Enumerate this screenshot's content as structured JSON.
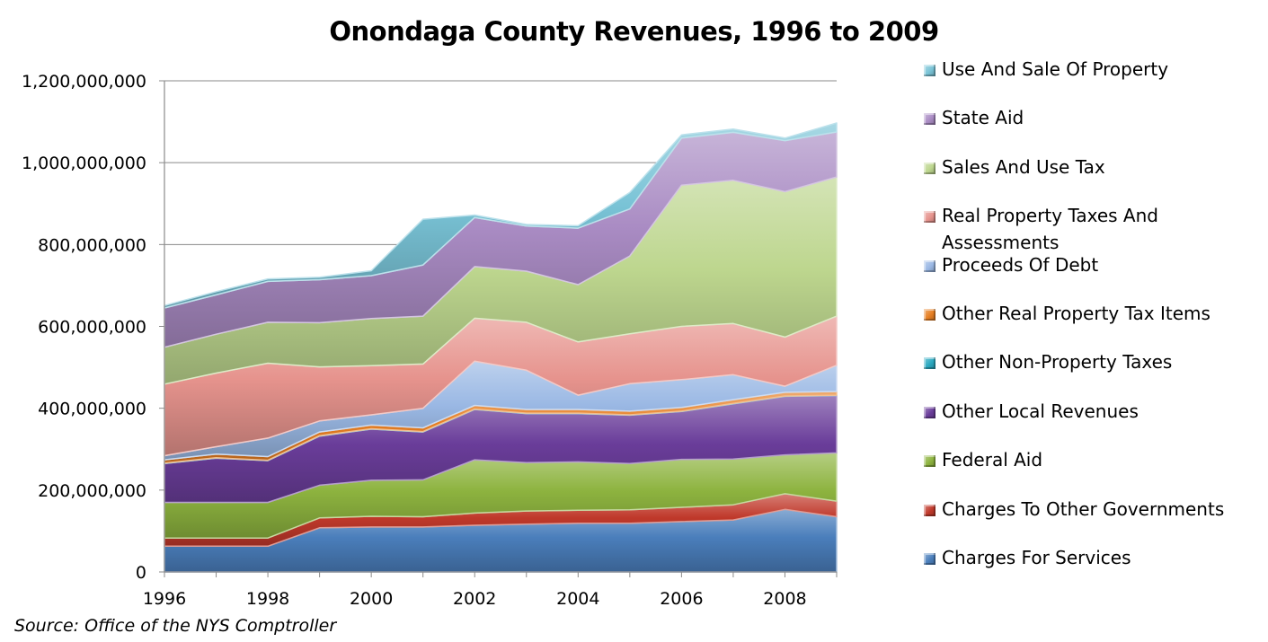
{
  "chart_data": {
    "type": "area",
    "stacked": true,
    "title": "Onondaga County Revenues, 1996 to 2009",
    "source": "Source:  Office of the NYS Comptroller",
    "x": [
      1996,
      1997,
      1998,
      1999,
      2000,
      2001,
      2002,
      2003,
      2004,
      2005,
      2006,
      2007,
      2008,
      2009
    ],
    "x_tick_labels": [
      "1996",
      "1998",
      "2000",
      "2002",
      "2004",
      "2006",
      "2008"
    ],
    "xlim": [
      1996,
      2009
    ],
    "ylim": [
      0,
      1200000000
    ],
    "y_tick_labels": [
      "0",
      "200,000,000",
      "400,000,000",
      "600,000,000",
      "800,000,000",
      "1,000,000,000",
      "1,200,000,000"
    ],
    "y_ticks": [
      0,
      200000000,
      400000000,
      600000000,
      800000000,
      1000000000,
      1200000000
    ],
    "grid": "horizontal",
    "legend_position": "right",
    "series": [
      {
        "name": "Charges For Services",
        "color": "#4a7ebb",
        "values": [
          63000000,
          63000000,
          63000000,
          108000000,
          110000000,
          110000000,
          114000000,
          117000000,
          119000000,
          119000000,
          123000000,
          127000000,
          153000000,
          135000000
        ]
      },
      {
        "name": "Charges To Other Governments",
        "color": "#c0392b",
        "values": [
          20000000,
          20000000,
          20000000,
          24000000,
          26000000,
          25000000,
          30000000,
          32000000,
          32000000,
          33000000,
          35000000,
          37000000,
          38000000,
          38000000
        ]
      },
      {
        "name": "Federal Aid",
        "color": "#8db33f",
        "values": [
          87000000,
          87000000,
          87000000,
          80000000,
          88000000,
          90000000,
          130000000,
          118000000,
          118000000,
          113000000,
          117000000,
          112000000,
          95000000,
          118000000
        ]
      },
      {
        "name": "Other Local Revenues",
        "color": "#6a3d9a",
        "values": [
          95000000,
          108000000,
          102000000,
          120000000,
          125000000,
          117000000,
          123000000,
          120000000,
          118000000,
          118000000,
          117000000,
          135000000,
          143000000,
          140000000
        ]
      },
      {
        "name": "Other Non-Property Taxes",
        "color": "#2aa8c0",
        "values": [
          1000000,
          1000000,
          1000000,
          1000000,
          1000000,
          1000000,
          1000000,
          1000000,
          1000000,
          1000000,
          1000000,
          1000000,
          1000000,
          1000000
        ]
      },
      {
        "name": "Other Real Property Tax Items",
        "color": "#e67e22",
        "values": [
          8000000,
          9000000,
          9000000,
          9000000,
          9000000,
          9000000,
          9000000,
          9000000,
          9000000,
          9000000,
          9000000,
          9000000,
          9000000,
          9000000
        ]
      },
      {
        "name": "Proceeds Of Debt",
        "color": "#9ab8e4",
        "values": [
          10000000,
          18000000,
          45000000,
          27000000,
          25000000,
          48000000,
          108000000,
          96000000,
          35000000,
          67000000,
          68000000,
          61000000,
          15000000,
          64000000
        ]
      },
      {
        "name": "Real Property Taxes And Assessments",
        "color": "#e6938d",
        "values": [
          175000000,
          180000000,
          183000000,
          132000000,
          120000000,
          108000000,
          105000000,
          117000000,
          130000000,
          122000000,
          130000000,
          125000000,
          120000000,
          120000000
        ]
      },
      {
        "name": "Sales And Use Tax",
        "color": "#bdd68e",
        "values": [
          90000000,
          95000000,
          100000000,
          108000000,
          115000000,
          117000000,
          126000000,
          125000000,
          140000000,
          190000000,
          345000000,
          350000000,
          355000000,
          340000000
        ]
      },
      {
        "name": "State Aid",
        "color": "#a98bc3",
        "values": [
          96000000,
          96000000,
          100000000,
          105000000,
          105000000,
          125000000,
          120000000,
          110000000,
          138000000,
          115000000,
          115000000,
          117000000,
          125000000,
          110000000
        ]
      },
      {
        "name": "Use And Sale Of Property",
        "color": "#79c3d6",
        "values": [
          6000000,
          8000000,
          6000000,
          6000000,
          12000000,
          112000000,
          6000000,
          4000000,
          6000000,
          40000000,
          8000000,
          8000000,
          6000000,
          22000000
        ]
      }
    ]
  }
}
